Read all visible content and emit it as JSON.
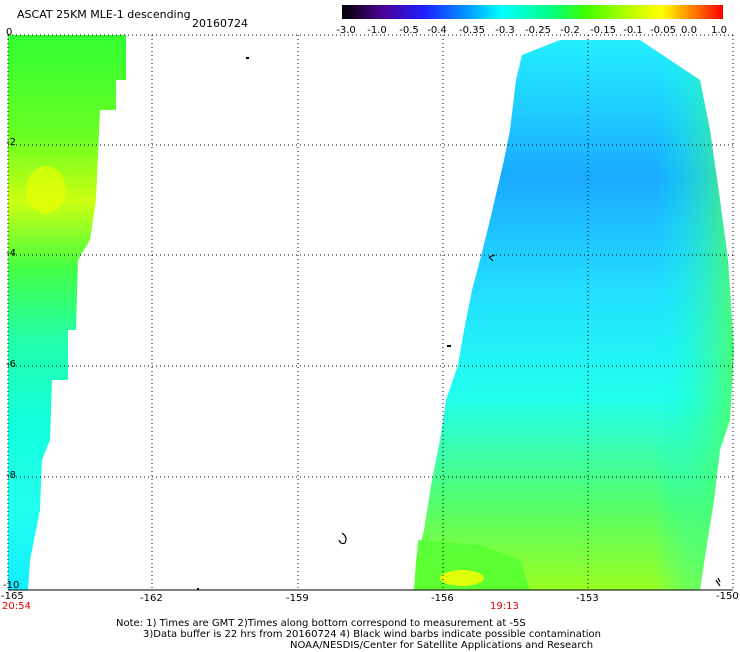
{
  "header": {
    "title": "ASCAT 25KM MLE-1 descending",
    "date": "20160724"
  },
  "colorbar": {
    "labels": [
      "-3.0",
      "-1.0",
      "-0.5",
      "-0.4",
      "-0.35",
      "-0.3",
      "-0.25",
      "-0.2",
      "-0.15",
      "-0.1",
      "-0.05",
      "0.0",
      "1.0"
    ],
    "colors": [
      "#000000",
      "#4a0090",
      "#2020ff",
      "#0090ff",
      "#00ffff",
      "#00ff80",
      "#40ff00",
      "#c0ff00",
      "#ffff00",
      "#ff8000",
      "#ff0000"
    ]
  },
  "axes": {
    "y_labels": [
      "0",
      "-2",
      "-4",
      "-6",
      "-8",
      "-10"
    ],
    "x_labels": [
      "-165",
      "-162",
      "-159",
      "-156",
      "-153",
      "-150"
    ],
    "time_left": "20:54",
    "time_mid": "19:13"
  },
  "notes": {
    "line1": "Note: 1) Times are GMT 2)Times along bottom correspond to measurement at -5S",
    "line2": "3)Data buffer is 22 hrs from 20160724 4) Black wind barbs indicate possible contamination",
    "line3": "NOAA/NESDIS/Center for Satellite Applications and Research"
  }
}
